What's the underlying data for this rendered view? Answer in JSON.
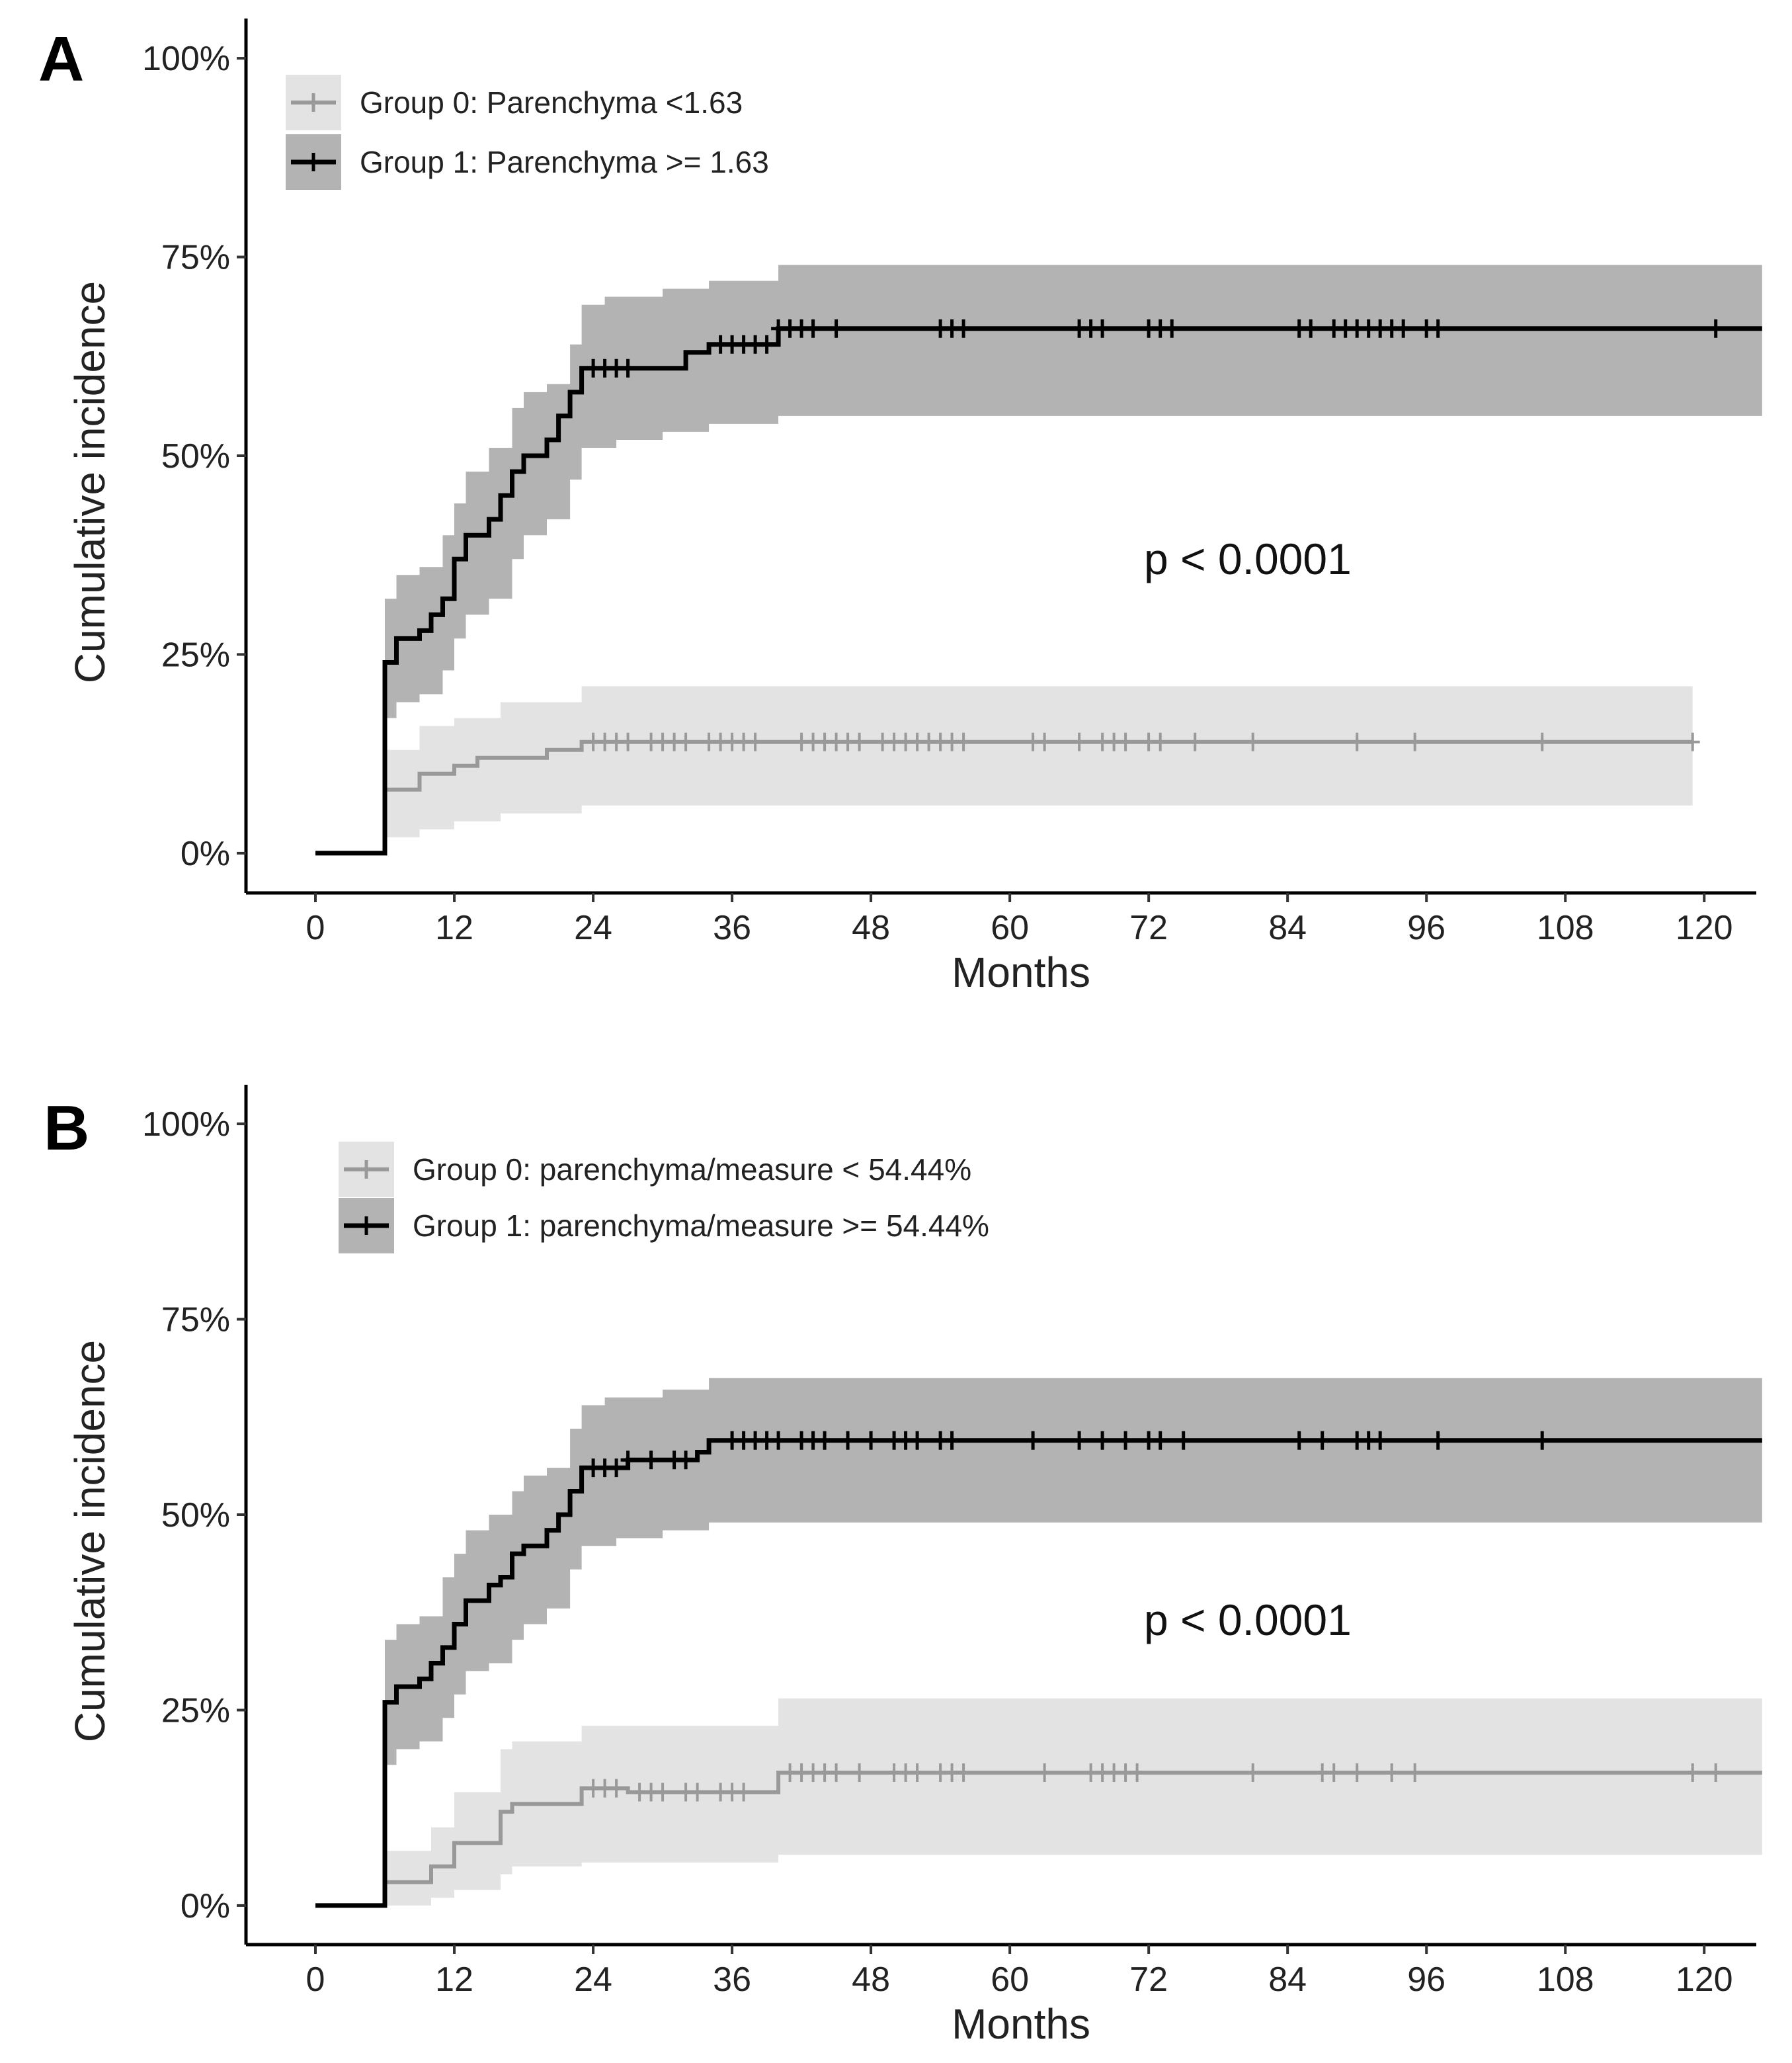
{
  "chart_data": [
    {
      "panel": "A",
      "type": "line",
      "subtype": "cumulative-incidence step curve with 95% CI bands",
      "xlabel": "Months",
      "ylabel": "Cumulative incidence",
      "xticks": [
        0,
        12,
        24,
        36,
        48,
        60,
        72,
        84,
        96,
        108,
        120
      ],
      "yticks": [
        0,
        25,
        50,
        75,
        100
      ],
      "ytick_labels": [
        "0%",
        "25%",
        "50%",
        "75%",
        "100%"
      ],
      "xlim": [
        -6,
        124.5
      ],
      "ylim": [
        -5,
        105
      ],
      "annotation": "p < 0.0001",
      "legend_position": "top-left",
      "series": [
        {
          "name": "Group 0: Parenchyma <1.63",
          "color": "#999999",
          "band_color": "#e3e3e3",
          "steps": [
            [
              0,
              0
            ],
            [
              6,
              0
            ],
            [
              6,
              8
            ],
            [
              9,
              8
            ],
            [
              9,
              10
            ],
            [
              12,
              10
            ],
            [
              12,
              11
            ],
            [
              14,
              11
            ],
            [
              14,
              12
            ],
            [
              20,
              12
            ],
            [
              20,
              13
            ],
            [
              23,
              13
            ],
            [
              23,
              14
            ],
            [
              119,
              14
            ]
          ],
          "ci_upper": [
            [
              6,
              13
            ],
            [
              9,
              16
            ],
            [
              12,
              17
            ],
            [
              16,
              19
            ],
            [
              23,
              21
            ],
            [
              119,
              21
            ]
          ],
          "ci_lower": [
            [
              6,
              2
            ],
            [
              9,
              3
            ],
            [
              12,
              4
            ],
            [
              16,
              5
            ],
            [
              23,
              6
            ],
            [
              119,
              6
            ]
          ],
          "censor_times": [
            24,
            25,
            26,
            27,
            29,
            30,
            31,
            32,
            34,
            35,
            36,
            37,
            38,
            42,
            43,
            44,
            45,
            46,
            47,
            49,
            50,
            51,
            52,
            53,
            54,
            55,
            56,
            62,
            63,
            66,
            68,
            69,
            70,
            72,
            73,
            76,
            81,
            90,
            95,
            106,
            119
          ]
        },
        {
          "name": "Group 1: Parenchyma >= 1.63",
          "color": "#000000",
          "band_color": "#b3b3b3",
          "steps": [
            [
              0,
              0
            ],
            [
              6,
              0
            ],
            [
              6,
              24
            ],
            [
              7,
              24
            ],
            [
              7,
              27
            ],
            [
              9,
              27
            ],
            [
              9,
              28
            ],
            [
              10,
              28
            ],
            [
              10,
              30
            ],
            [
              11,
              30
            ],
            [
              11,
              32
            ],
            [
              12,
              32
            ],
            [
              12,
              37
            ],
            [
              13,
              37
            ],
            [
              13,
              40
            ],
            [
              15,
              40
            ],
            [
              15,
              42
            ],
            [
              16,
              42
            ],
            [
              16,
              45
            ],
            [
              17,
              45
            ],
            [
              17,
              48
            ],
            [
              18,
              48
            ],
            [
              18,
              50
            ],
            [
              20,
              50
            ],
            [
              20,
              52
            ],
            [
              21,
              52
            ],
            [
              21,
              55
            ],
            [
              22,
              55
            ],
            [
              22,
              58
            ],
            [
              23,
              58
            ],
            [
              23,
              61
            ],
            [
              32,
              61
            ],
            [
              32,
              63
            ],
            [
              34,
              63
            ],
            [
              34,
              64
            ],
            [
              40,
              64
            ],
            [
              40,
              66
            ],
            [
              125,
              66
            ]
          ],
          "ci_upper": [
            [
              6,
              32
            ],
            [
              7,
              35
            ],
            [
              9,
              36
            ],
            [
              11,
              40
            ],
            [
              12,
              44
            ],
            [
              13,
              48
            ],
            [
              15,
              51
            ],
            [
              17,
              56
            ],
            [
              18,
              58
            ],
            [
              20,
              59
            ],
            [
              22,
              64
            ],
            [
              23,
              69
            ],
            [
              25,
              70
            ],
            [
              30,
              71
            ],
            [
              34,
              72
            ],
            [
              40,
              74
            ],
            [
              125,
              74
            ]
          ],
          "ci_lower": [
            [
              6,
              17
            ],
            [
              7,
              19
            ],
            [
              9,
              20
            ],
            [
              11,
              23
            ],
            [
              12,
              27
            ],
            [
              13,
              30
            ],
            [
              15,
              32
            ],
            [
              17,
              37
            ],
            [
              18,
              40
            ],
            [
              20,
              42
            ],
            [
              22,
              47
            ],
            [
              23,
              51
            ],
            [
              26,
              52
            ],
            [
              30,
              53
            ],
            [
              34,
              54
            ],
            [
              40,
              55
            ],
            [
              125,
              55
            ]
          ],
          "censor_times": [
            24,
            25,
            26,
            27,
            35,
            36,
            37,
            38,
            39,
            40,
            41,
            42,
            43,
            45,
            54,
            55,
            56,
            66,
            67,
            68,
            72,
            73,
            74,
            85,
            86,
            88,
            89,
            90,
            91,
            92,
            93,
            94,
            96,
            97,
            121
          ]
        }
      ]
    },
    {
      "panel": "B",
      "type": "line",
      "subtype": "cumulative-incidence step curve with 95% CI bands",
      "xlabel": "Months",
      "ylabel": "Cumulative incidence",
      "xticks": [
        0,
        12,
        24,
        36,
        48,
        60,
        72,
        84,
        96,
        108,
        120
      ],
      "yticks": [
        0,
        25,
        50,
        75,
        100
      ],
      "ytick_labels": [
        "0%",
        "25%",
        "50%",
        "75%",
        "100%"
      ],
      "xlim": [
        -6,
        124.5
      ],
      "ylim": [
        -5,
        105
      ],
      "annotation": "p < 0.0001",
      "legend_position": "top-left",
      "series": [
        {
          "name": "Group 0: parenchyma/measure < 54.44%",
          "color": "#999999",
          "band_color": "#e3e3e3",
          "steps": [
            [
              0,
              0
            ],
            [
              6,
              0
            ],
            [
              6,
              3
            ],
            [
              10,
              3
            ],
            [
              10,
              5
            ],
            [
              12,
              5
            ],
            [
              12,
              8
            ],
            [
              16,
              8
            ],
            [
              16,
              12
            ],
            [
              17,
              12
            ],
            [
              17,
              13
            ],
            [
              23,
              13
            ],
            [
              23,
              15
            ],
            [
              27,
              15
            ],
            [
              27,
              14.5
            ],
            [
              40,
              14.5
            ],
            [
              40,
              17
            ],
            [
              125,
              17
            ]
          ],
          "ci_upper": [
            [
              6,
              7
            ],
            [
              10,
              10
            ],
            [
              12,
              14.5
            ],
            [
              16,
              20
            ],
            [
              17,
              21
            ],
            [
              23,
              23
            ],
            [
              40,
              26.5
            ],
            [
              125,
              26.5
            ]
          ],
          "ci_lower": [
            [
              6,
              0
            ],
            [
              10,
              1
            ],
            [
              12,
              2
            ],
            [
              16,
              4
            ],
            [
              17,
              5
            ],
            [
              23,
              5.5
            ],
            [
              40,
              6.5
            ],
            [
              125,
              6.5
            ]
          ],
          "censor_times": [
            24,
            25,
            26,
            28,
            29,
            30,
            32,
            33,
            35,
            36,
            37,
            41,
            42,
            43,
            44,
            45,
            47,
            50,
            51,
            52,
            54,
            55,
            56,
            63,
            67,
            68,
            69,
            70,
            71,
            81,
            87,
            88,
            90,
            93,
            95,
            119,
            121
          ]
        },
        {
          "name": "Group 1: parenchyma/measure >= 54.44%",
          "color": "#000000",
          "band_color": "#b3b3b3",
          "steps": [
            [
              0,
              0
            ],
            [
              6,
              0
            ],
            [
              6,
              26
            ],
            [
              7,
              26
            ],
            [
              7,
              28
            ],
            [
              9,
              28
            ],
            [
              9,
              29
            ],
            [
              10,
              29
            ],
            [
              10,
              31
            ],
            [
              11,
              31
            ],
            [
              11,
              33
            ],
            [
              12,
              33
            ],
            [
              12,
              36
            ],
            [
              13,
              36
            ],
            [
              13,
              39
            ],
            [
              15,
              39
            ],
            [
              15,
              41
            ],
            [
              16,
              41
            ],
            [
              16,
              42
            ],
            [
              17,
              42
            ],
            [
              17,
              45
            ],
            [
              18,
              45
            ],
            [
              18,
              46
            ],
            [
              20,
              46
            ],
            [
              20,
              48
            ],
            [
              21,
              48
            ],
            [
              21,
              50
            ],
            [
              22,
              50
            ],
            [
              22,
              53
            ],
            [
              23,
              53
            ],
            [
              23,
              56
            ],
            [
              27,
              56
            ],
            [
              27,
              57
            ],
            [
              33,
              57
            ],
            [
              33,
              58
            ],
            [
              34,
              58
            ],
            [
              34,
              59.5
            ],
            [
              125,
              59.5
            ]
          ],
          "ci_upper": [
            [
              6,
              34
            ],
            [
              7,
              36
            ],
            [
              9,
              37
            ],
            [
              11,
              42
            ],
            [
              12,
              45
            ],
            [
              13,
              48
            ],
            [
              15,
              50
            ],
            [
              17,
              53
            ],
            [
              18,
              55
            ],
            [
              20,
              56
            ],
            [
              22,
              61
            ],
            [
              23,
              64
            ],
            [
              25,
              65
            ],
            [
              30,
              66
            ],
            [
              34,
              67.5
            ],
            [
              125,
              67.5
            ]
          ],
          "ci_lower": [
            [
              6,
              18
            ],
            [
              7,
              20
            ],
            [
              9,
              21
            ],
            [
              11,
              24
            ],
            [
              12,
              27
            ],
            [
              13,
              30
            ],
            [
              15,
              31
            ],
            [
              17,
              34
            ],
            [
              18,
              36
            ],
            [
              20,
              38
            ],
            [
              22,
              43
            ],
            [
              23,
              46
            ],
            [
              26,
              47
            ],
            [
              30,
              48
            ],
            [
              34,
              49
            ],
            [
              125,
              49
            ]
          ],
          "censor_times": [
            24,
            25,
            26,
            27,
            29,
            31,
            32,
            36,
            37,
            38,
            39,
            40,
            42,
            43,
            44,
            46,
            48,
            50,
            51,
            52,
            54,
            55,
            62,
            66,
            68,
            70,
            72,
            73,
            75,
            85,
            87,
            90,
            91,
            92,
            97,
            106
          ]
        }
      ]
    }
  ]
}
